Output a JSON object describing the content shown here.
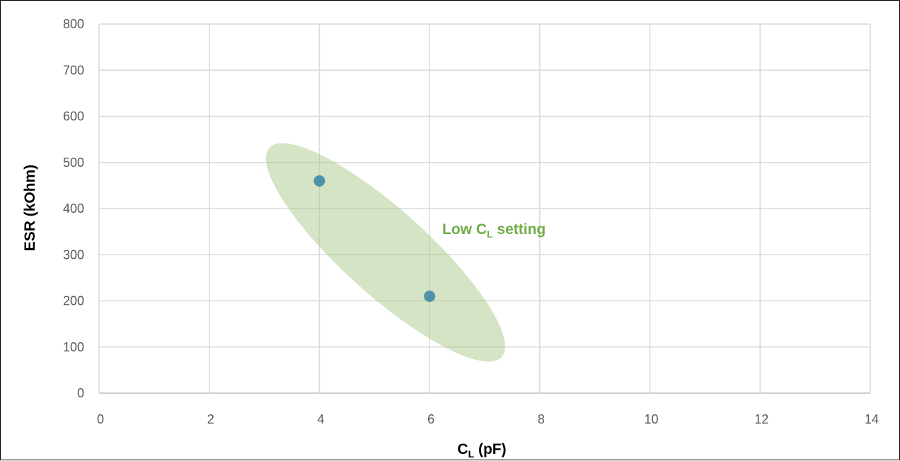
{
  "chart_data": {
    "type": "scatter",
    "xlabel": {
      "main": "C",
      "sub": "L",
      "rest": " (pF)"
    },
    "ylabel": "ESR (kOhm)",
    "xlim": [
      0,
      14
    ],
    "ylim": [
      0,
      800
    ],
    "x_ticks": [
      0,
      2,
      4,
      6,
      8,
      10,
      12,
      14
    ],
    "y_ticks": [
      0,
      100,
      200,
      300,
      400,
      500,
      600,
      700,
      800
    ],
    "grid": true,
    "series": [
      {
        "color": "#4e93a8",
        "points": [
          {
            "x": 4,
            "y": 460
          },
          {
            "x": 6,
            "y": 210
          }
        ]
      }
    ],
    "annotations": [
      {
        "text": {
          "main": "Low C",
          "sub": "L",
          "rest": " setting"
        },
        "color": "#70ad47",
        "region": {
          "type": "ellipse",
          "cx": 5.2,
          "cy": 305,
          "color": "#a9c98a"
        }
      }
    ]
  }
}
